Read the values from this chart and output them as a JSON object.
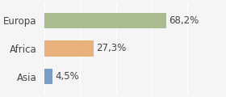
{
  "categories": [
    "Asia",
    "Africa",
    "Europa"
  ],
  "values": [
    4.5,
    27.3,
    68.2
  ],
  "labels": [
    "4,5%",
    "27,3%",
    "68,2%"
  ],
  "bar_colors": [
    "#7b9ec9",
    "#e8b07a",
    "#a8bc8f"
  ],
  "background_color": "#f5f5f5",
  "xlim": [
    0,
    100
  ],
  "bar_height": 0.55,
  "label_fontsize": 8.5,
  "tick_fontsize": 8.5
}
